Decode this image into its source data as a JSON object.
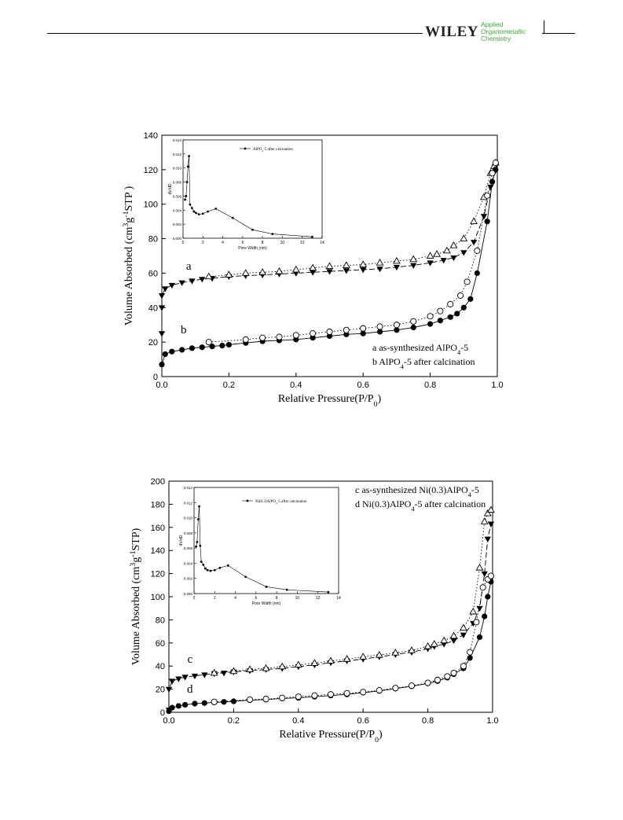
{
  "header": {
    "publisher": "WILEY",
    "journal_lines": [
      "Applied",
      "Organometallic",
      "Chemistry"
    ]
  },
  "chart_data": [
    {
      "type": "line",
      "xlabel": "Relative Pressure(P/P0)",
      "ylabel": "Volume Absorbed (cm3g-1STP )",
      "xlim": [
        0,
        1.0
      ],
      "ylim": [
        0,
        140
      ],
      "xticks": [
        "0.0",
        "0.2",
        "0.4",
        "0.6",
        "0.8",
        "1.0"
      ],
      "yticks": [
        "0",
        "20",
        "40",
        "60",
        "80",
        "100",
        "120",
        "140"
      ],
      "curve_labels": [
        {
          "text": "a",
          "x": 0.08,
          "y": 62
        },
        {
          "text": "b",
          "x": 0.065,
          "y": 25
        }
      ],
      "legend": [
        "a  as-synthesized AlPO4-5",
        "b  AlPO4-5 after calcination"
      ],
      "legend_position": "bottom-right",
      "series": [
        {
          "name": "a",
          "marker": "triangle-down-filled",
          "dash": "dash",
          "x": [
            0.0,
            0.0,
            0.0,
            0.01,
            0.03,
            0.06,
            0.09,
            0.12,
            0.15,
            0.2,
            0.25,
            0.3,
            0.35,
            0.4,
            0.45,
            0.5,
            0.55,
            0.6,
            0.65,
            0.7,
            0.75,
            0.8,
            0.84,
            0.87,
            0.9,
            0.93,
            0.96,
            0.98,
            0.99,
            0.995
          ],
          "y": [
            25,
            40,
            47,
            51,
            53,
            54.5,
            55.5,
            56.5,
            57,
            58,
            58.5,
            59,
            59.5,
            60,
            60.5,
            61,
            61.5,
            62,
            62.5,
            63.5,
            64.5,
            66,
            67.5,
            69,
            72,
            78,
            93,
            110,
            118,
            122
          ]
        },
        {
          "name": "a-desorption",
          "marker": "triangle-up-open",
          "dash": "dot",
          "x": [
            0.14,
            0.2,
            0.25,
            0.3,
            0.35,
            0.4,
            0.45,
            0.5,
            0.55,
            0.6,
            0.65,
            0.7,
            0.75,
            0.8,
            0.82,
            0.85,
            0.87,
            0.9,
            0.93,
            0.96,
            0.98,
            0.99,
            0.995
          ],
          "y": [
            58,
            59,
            60,
            60.5,
            61,
            62,
            63,
            64,
            64.5,
            65,
            66,
            67,
            68,
            70,
            71,
            73,
            76,
            80,
            90,
            104,
            118,
            122,
            124
          ]
        },
        {
          "name": "b",
          "marker": "circle-filled",
          "dash": "solid",
          "x": [
            0.0,
            0.01,
            0.03,
            0.06,
            0.09,
            0.12,
            0.15,
            0.18,
            0.2,
            0.25,
            0.3,
            0.35,
            0.4,
            0.45,
            0.5,
            0.55,
            0.6,
            0.65,
            0.7,
            0.75,
            0.8,
            0.83,
            0.86,
            0.88,
            0.9,
            0.92,
            0.94,
            0.97,
            0.985,
            0.995
          ],
          "y": [
            7,
            13,
            14.5,
            15.5,
            16.5,
            17,
            17.5,
            18,
            18.5,
            19.5,
            20.5,
            21,
            21.5,
            22.5,
            23.5,
            24.5,
            25,
            26,
            27,
            28.5,
            30.5,
            32.5,
            34.5,
            36.5,
            40,
            45,
            60,
            90,
            113,
            120
          ]
        },
        {
          "name": "b-desorption",
          "marker": "circle-open",
          "dash": "dot",
          "x": [
            0.14,
            0.25,
            0.3,
            0.35,
            0.4,
            0.45,
            0.5,
            0.55,
            0.6,
            0.65,
            0.7,
            0.75,
            0.8,
            0.83,
            0.86,
            0.89,
            0.91,
            0.94,
            0.97,
            0.985,
            0.995
          ],
          "y": [
            20,
            21.5,
            22.5,
            23,
            24,
            25,
            26,
            27,
            28,
            29,
            30,
            32,
            35,
            38,
            42,
            47,
            55,
            73,
            105,
            118,
            124
          ]
        }
      ]
    },
    {
      "type": "line",
      "inset_of": 0,
      "xlabel": "Pore Width (nm)",
      "ylabel": "dV/dD",
      "xlim": [
        0,
        14
      ],
      "ylim": [
        0,
        0.014
      ],
      "xticks": [
        "0",
        "2",
        "4",
        "6",
        "8",
        "10",
        "12",
        "14"
      ],
      "yticks": [
        "0.000",
        "0.002",
        "0.004",
        "0.006",
        "0.008",
        "0.010",
        "0.012",
        "0.014"
      ],
      "legend": [
        "AlPO4-5 after calcination"
      ],
      "series": [
        {
          "name": "AlPO4-5 after calcination",
          "x": [
            0.2,
            0.3,
            0.4,
            0.5,
            0.6,
            0.7,
            0.9,
            1.1,
            1.3,
            1.6,
            2.0,
            2.5,
            3.3,
            5.0,
            7.0,
            9.0,
            13.0
          ],
          "y": [
            0.0055,
            0.006,
            0.008,
            0.0102,
            0.0117,
            0.0048,
            0.0043,
            0.0038,
            0.0036,
            0.0034,
            0.0035,
            0.0038,
            0.0042,
            0.0029,
            0.0012,
            0.0006,
            0.0002
          ]
        }
      ]
    },
    {
      "type": "line",
      "xlabel": "Relative Pressure(P/P0)",
      "ylabel": "Volume Absorbed (cm3g-1STP)",
      "xlim": [
        0,
        1.0
      ],
      "ylim": [
        0,
        200
      ],
      "xticks": [
        "0.0",
        "0.2",
        "0.4",
        "0.6",
        "0.8",
        "1.0"
      ],
      "yticks": [
        "0",
        "20",
        "40",
        "60",
        "80",
        "100",
        "120",
        "140",
        "160",
        "180",
        "200"
      ],
      "curve_labels": [
        {
          "text": "c",
          "x": 0.065,
          "y": 43
        },
        {
          "text": "d",
          "x": 0.065,
          "y": 17
        }
      ],
      "legend": [
        "c  as-synthesized Ni(0.3)AlPO4-5",
        "d  Ni(0.3)AlPO4-5 after calcination"
      ],
      "legend_position": "top-right",
      "series": [
        {
          "name": "c",
          "marker": "triangle-down-filled",
          "dash": "dash",
          "x": [
            0.0,
            0.0,
            0.01,
            0.03,
            0.05,
            0.08,
            0.11,
            0.14,
            0.17,
            0.2,
            0.25,
            0.3,
            0.35,
            0.4,
            0.45,
            0.5,
            0.55,
            0.6,
            0.65,
            0.7,
            0.75,
            0.8,
            0.82,
            0.85,
            0.88,
            0.91,
            0.94,
            0.96,
            0.975,
            0.985,
            0.995
          ],
          "y": [
            2,
            20,
            27,
            29,
            30.5,
            31.5,
            32.5,
            33.5,
            34,
            35,
            36,
            37,
            38,
            39.5,
            41,
            43,
            44.5,
            46,
            48,
            50,
            52,
            55,
            57,
            59,
            62,
            67,
            77,
            90,
            120,
            150,
            163
          ]
        },
        {
          "name": "c-desorption",
          "marker": "triangle-up-open",
          "dash": "dot",
          "x": [
            0.14,
            0.2,
            0.25,
            0.3,
            0.35,
            0.4,
            0.45,
            0.5,
            0.55,
            0.6,
            0.65,
            0.7,
            0.75,
            0.8,
            0.82,
            0.85,
            0.88,
            0.91,
            0.94,
            0.96,
            0.975,
            0.985,
            0.995
          ],
          "y": [
            34,
            35.5,
            37,
            38,
            39.5,
            41,
            42.5,
            44.5,
            46,
            48,
            49.5,
            51.5,
            53.5,
            57,
            59,
            62,
            66,
            73,
            87,
            125,
            165,
            172,
            175
          ]
        },
        {
          "name": "d",
          "marker": "circle-filled",
          "dash": "solid",
          "x": [
            0.0,
            0.01,
            0.03,
            0.05,
            0.08,
            0.11,
            0.14,
            0.17,
            0.2,
            0.25,
            0.3,
            0.35,
            0.4,
            0.45,
            0.5,
            0.55,
            0.6,
            0.65,
            0.7,
            0.75,
            0.8,
            0.83,
            0.86,
            0.88,
            0.91,
            0.93,
            0.96,
            0.975,
            0.985,
            0.995
          ],
          "y": [
            1,
            4,
            5.5,
            6.5,
            7.5,
            8,
            8.5,
            9,
            9.5,
            10.5,
            11,
            12,
            12.5,
            13.5,
            14.5,
            15.5,
            17,
            18.5,
            20.5,
            22.5,
            25,
            27,
            30,
            33,
            38,
            47,
            65,
            83,
            100,
            113
          ]
        },
        {
          "name": "d-desorption",
          "marker": "circle-open",
          "dash": "dot",
          "x": [
            0.14,
            0.25,
            0.3,
            0.35,
            0.4,
            0.45,
            0.5,
            0.55,
            0.6,
            0.65,
            0.7,
            0.75,
            0.8,
            0.83,
            0.86,
            0.88,
            0.91,
            0.93,
            0.95,
            0.97,
            0.985,
            0.995
          ],
          "y": [
            9,
            11,
            11.5,
            12.5,
            13.5,
            14.5,
            15.5,
            16.5,
            17.5,
            19,
            21,
            23,
            25.5,
            28,
            31,
            34,
            40,
            52,
            78,
            108,
            115,
            118
          ]
        }
      ]
    },
    {
      "type": "line",
      "inset_of": 2,
      "xlabel": "Pore Width (nm)",
      "ylabel": "dV/dD",
      "xlim": [
        0,
        14
      ],
      "ylim": [
        0,
        0.014
      ],
      "xticks": [
        "0",
        "2",
        "4",
        "6",
        "8",
        "10",
        "12",
        "14"
      ],
      "yticks": [
        "0.000",
        "0.002",
        "0.004",
        "0.006",
        "0.008",
        "0.010",
        "0.012",
        "0.014"
      ],
      "legend": [
        "Ni(0.3)AlPO4-5 after calcination"
      ],
      "series": [
        {
          "name": "Ni(0.3)AlPO4-5 after calcination",
          "x": [
            0.2,
            0.3,
            0.4,
            0.5,
            0.6,
            0.7,
            0.9,
            1.1,
            1.3,
            1.6,
            2.0,
            2.5,
            3.3,
            5.0,
            7.0,
            9.0,
            13.0
          ],
          "y": [
            0.0062,
            0.0068,
            0.0098,
            0.0115,
            0.0063,
            0.0042,
            0.0038,
            0.0033,
            0.0031,
            0.003,
            0.0031,
            0.0034,
            0.0037,
            0.0022,
            0.0009,
            0.0005,
            0.0002
          ]
        }
      ]
    }
  ]
}
